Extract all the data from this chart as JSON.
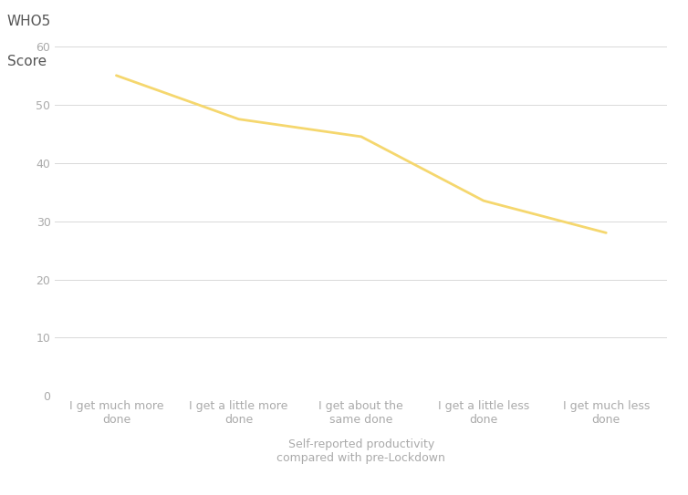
{
  "x_labels": [
    "I get much more\ndone",
    "I get a little more\ndone",
    "I get about the\nsame done",
    "I get a little less\ndone",
    "I get much less\ndone"
  ],
  "y_values": [
    55.0,
    47.5,
    44.5,
    33.5,
    28.0
  ],
  "line_color": "#F5D76E",
  "line_width": 2.0,
  "ylabel_line1": "WHO5",
  "ylabel_line2": "Score",
  "xlabel": "Self-reported productivity\ncompared with pre-Lockdown",
  "ylim": [
    0,
    62
  ],
  "yticks": [
    0,
    10,
    20,
    30,
    40,
    50,
    60
  ],
  "background_color": "#ffffff",
  "grid_color": "#d9d9d9",
  "tick_label_color": "#aaaaaa",
  "axis_label_color": "#555555",
  "xlabel_fontsize": 9,
  "ylabel_fontsize": 11,
  "tick_fontsize": 9,
  "xtick_fontsize": 9
}
